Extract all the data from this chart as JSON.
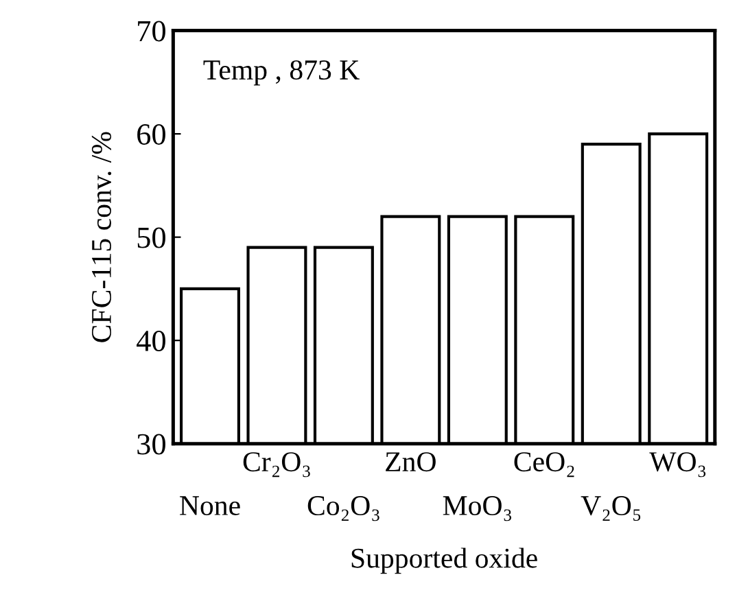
{
  "chart_data": {
    "type": "bar",
    "xlabel": "Supported oxide",
    "ylabel": "CFC-115 conv. /%",
    "categories": [
      "None",
      "Cr₂O₃",
      "Co₂O₃",
      "ZnO",
      "MoO₃",
      "CeO₂",
      "V₂O₅",
      "WO₃"
    ],
    "values": [
      45,
      49,
      49,
      52,
      52,
      52,
      59,
      60
    ],
    "color": "#ffffff",
    "ylim": [
      30,
      70
    ],
    "yticks": [
      30,
      40,
      50,
      60,
      70
    ],
    "grid": false,
    "legend": false,
    "annotations": [
      "Temp , 873 K"
    ]
  }
}
